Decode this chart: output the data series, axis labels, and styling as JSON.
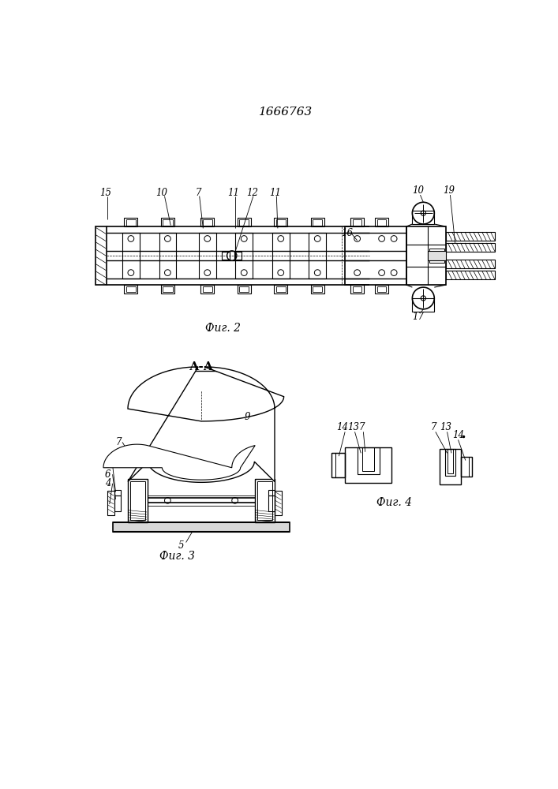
{
  "title": "1666763",
  "bg_color": "#ffffff",
  "fig2_label": "Фиг. 2",
  "fig3_label": "Фиг. 3",
  "fig4_label": "Фиг. 4",
  "aa_label": "А-А"
}
